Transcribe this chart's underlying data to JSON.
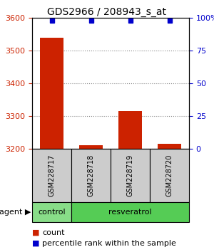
{
  "title": "GDS2966 / 208943_s_at",
  "samples": [
    "GSM228717",
    "GSM228718",
    "GSM228719",
    "GSM228720"
  ],
  "counts": [
    3540,
    3210,
    3315,
    3215
  ],
  "percentile_ranks": [
    98,
    98,
    98,
    98
  ],
  "ylim_left": [
    3200,
    3600
  ],
  "ylim_right": [
    0,
    100
  ],
  "yticks_left": [
    3200,
    3300,
    3400,
    3500,
    3600
  ],
  "yticks_right": [
    0,
    25,
    50,
    75,
    100
  ],
  "ytick_right_labels": [
    "0",
    "25",
    "50",
    "75",
    "100%"
  ],
  "bar_color": "#cc2200",
  "dot_color": "#0000cc",
  "groups": [
    {
      "label": "control",
      "n_samples": 1,
      "color": "#88dd88"
    },
    {
      "label": "resveratrol",
      "n_samples": 3,
      "color": "#55cc55"
    }
  ],
  "agent_label": "agent",
  "left_tick_color": "#cc2200",
  "right_tick_color": "#0000cc",
  "grid_color": "#888888",
  "background_color": "#ffffff",
  "bar_width": 0.6,
  "bar_bottom": 3200
}
